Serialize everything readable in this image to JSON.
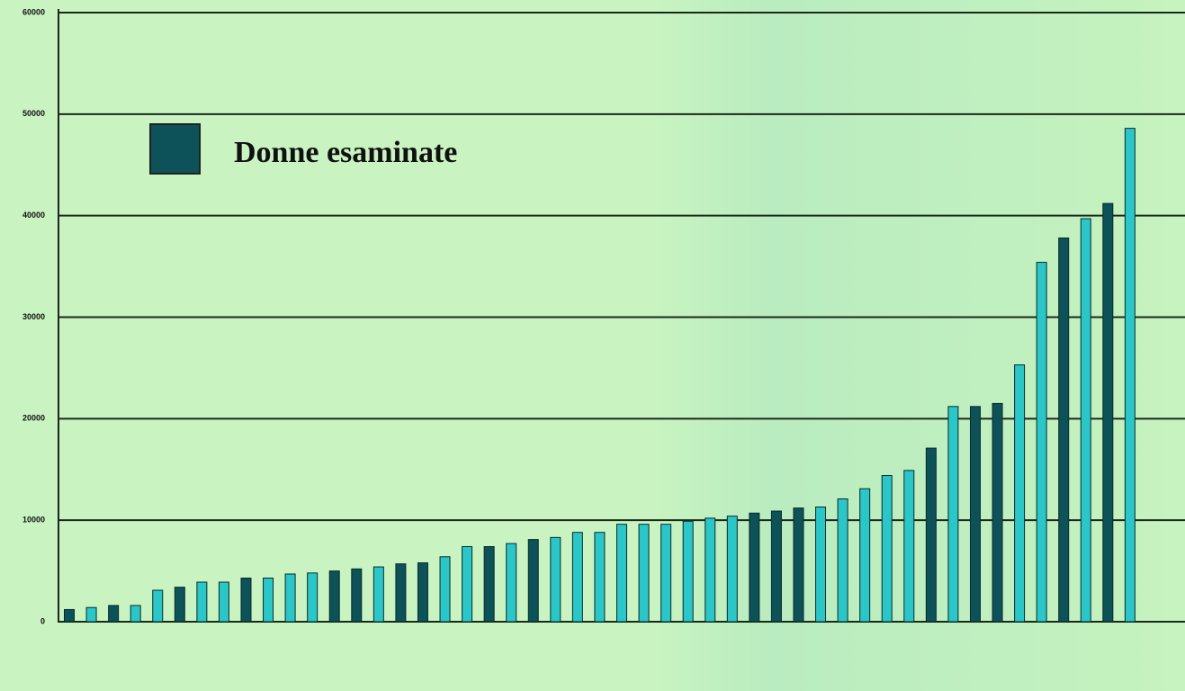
{
  "chart_data": {
    "type": "bar",
    "categories": [
      null,
      null,
      null,
      null,
      null,
      null,
      null,
      null,
      null,
      null,
      null,
      null,
      null,
      null,
      null,
      null,
      null,
      null,
      null,
      null,
      null,
      null,
      null,
      null,
      null,
      null,
      null,
      null,
      null,
      null,
      null,
      null,
      null,
      null,
      null,
      null,
      null,
      null,
      null,
      null,
      null,
      null,
      null,
      null,
      null,
      null,
      null,
      null,
      null,
      null,
      null
    ],
    "values": [
      1200,
      1400,
      1600,
      1600,
      3100,
      3400,
      3900,
      3900,
      4300,
      4300,
      4700,
      4800,
      5000,
      5200,
      5400,
      5700,
      5800,
      6400,
      7400,
      7400,
      7700,
      8100,
      8300,
      8800,
      8800,
      9600,
      9600,
      9600,
      9900,
      10200,
      10400,
      10700,
      10900,
      11200,
      11300,
      12100,
      13100,
      14400,
      14900,
      17100,
      21200,
      21200,
      21500,
      25300,
      35400,
      37800,
      39700,
      41200,
      48600,
      null,
      null
    ],
    "bar_colors": [
      "#0c5258",
      "#2ac6c8",
      "#0c5258",
      "#2ac6c8",
      "#2ac6c8",
      "#0c5258",
      "#2ac6c8",
      "#2ac6c8",
      "#0c5258",
      "#2ac6c8",
      "#2ac6c8",
      "#2ac6c8",
      "#0c5258",
      "#0c5258",
      "#2ac6c8",
      "#0c5258",
      "#0c5258",
      "#2ac6c8",
      "#2ac6c8",
      "#0c5258",
      "#2ac6c8",
      "#0c5258",
      "#2ac6c8",
      "#2ac6c8",
      "#2ac6c8",
      "#2ac6c8",
      "#2ac6c8",
      "#2ac6c8",
      "#2ac6c8",
      "#2ac6c8",
      "#2ac6c8",
      "#0c5258",
      "#0c5258",
      "#0c5258",
      "#2ac6c8",
      "#2ac6c8",
      "#2ac6c8",
      "#2ac6c8",
      "#2ac6c8",
      "#0c5258",
      "#2ac6c8",
      "#0c5258",
      "#0c5258",
      "#2ac6c8",
      "#2ac6c8",
      "#0c5258",
      "#2ac6c8",
      "#0c5258",
      "#2ac6c8",
      "#2ac6c8",
      "#2ac6c8"
    ],
    "legend": {
      "label": "Donne esaminate",
      "color": "#0c5258"
    },
    "ylim": [
      0,
      60000
    ],
    "yticks": [
      0,
      10000,
      20000,
      30000,
      40000,
      50000,
      60000
    ],
    "grid": true
  }
}
